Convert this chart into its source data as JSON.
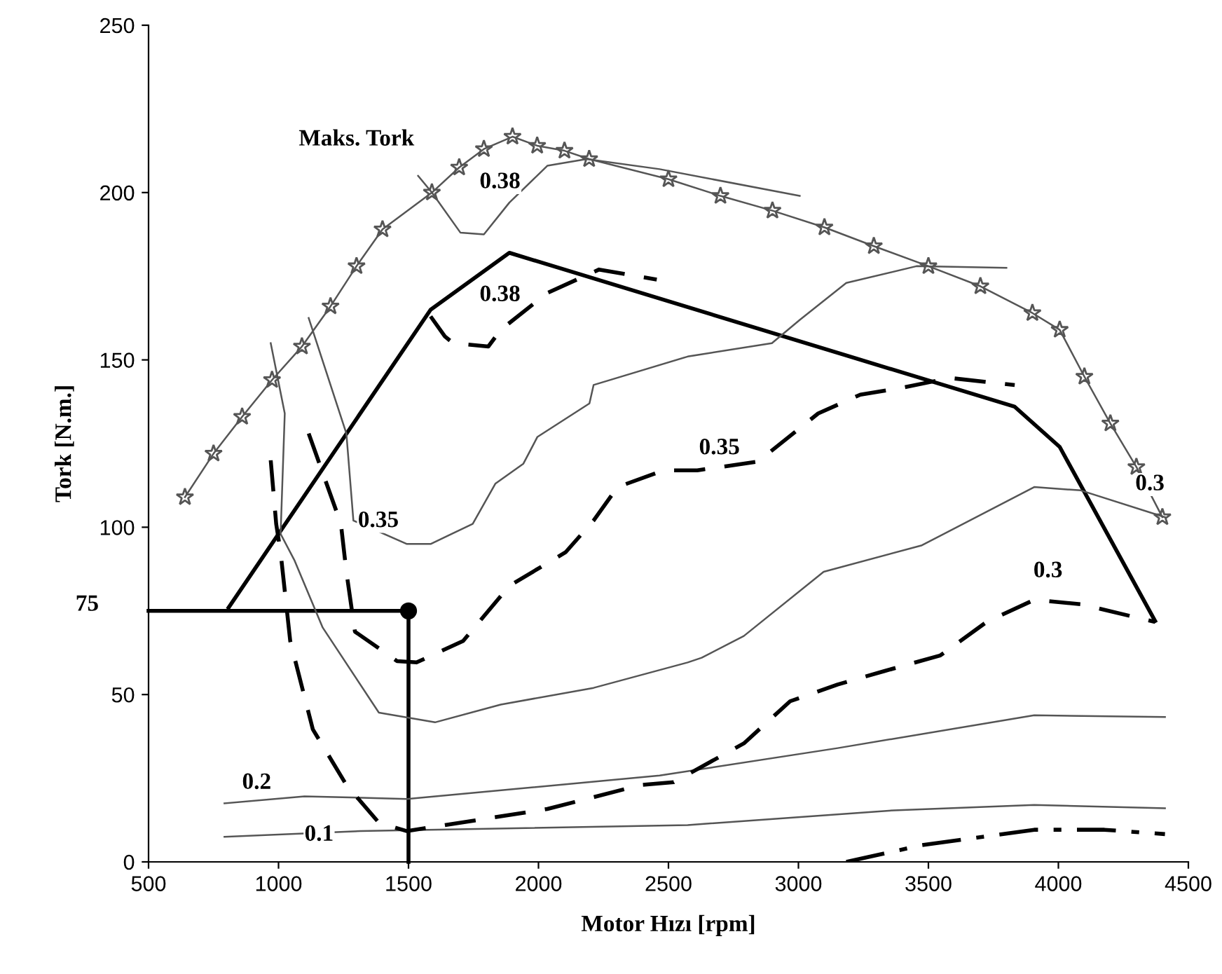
{
  "chart_data": {
    "type": "line",
    "xlabel": "Motor Hızı [rpm]",
    "ylabel": "Tork [N.m.]",
    "xlim": [
      500,
      4500
    ],
    "ylim": [
      0,
      250
    ],
    "xticks": [
      500,
      1000,
      1500,
      2000,
      2500,
      3000,
      3500,
      4000,
      4500
    ],
    "yticks": [
      0,
      50,
      100,
      150,
      200,
      250
    ],
    "grid": false,
    "legend": false,
    "series": [
      {
        "color": "#555555",
        "marker": "star",
        "line_style": "solid",
        "x": [
          640,
          750,
          860,
          975,
          1090,
          1200,
          1300,
          1400,
          1590,
          1695,
          1790,
          1900,
          1995,
          2100,
          2195,
          2500,
          2700,
          2900,
          3100,
          3290,
          3500,
          3700,
          3900,
          4005,
          4100,
          4200,
          4300,
          4400
        ],
        "values": [
          109,
          122,
          133,
          144,
          154,
          166,
          178,
          189,
          200,
          207.5,
          213,
          216.7,
          214,
          212.5,
          210,
          204,
          199,
          194.6,
          189.6,
          184,
          178,
          172,
          164,
          159,
          145,
          131,
          118,
          103
        ]
      },
      {
        "color": "#000000",
        "line_style": "solid",
        "x": [
          808,
          1585,
          1888,
          3832,
          4005,
          4372
        ],
        "values": [
          76,
          165,
          182,
          136,
          124,
          72
        ]
      },
      {
        "color": "#000000",
        "line_style": "solid",
        "x": [
          500,
          1500,
          1500
        ],
        "values": [
          75,
          75,
          0
        ]
      },
      {
        "type": "scatter",
        "color": "#000000",
        "marker": "circle",
        "x": [
          1500
        ],
        "values": [
          75
        ]
      },
      {
        "color": "#555555",
        "line_style": "solid",
        "x": [
          1537,
          1590,
          1700,
          1790,
          1888,
          2034,
          2185,
          2466,
          3005
        ],
        "values": [
          205,
          200,
          188,
          187.5,
          197,
          208,
          210,
          207,
          199
        ]
      },
      {
        "color": "#555555",
        "line_style": "solid",
        "x": [
          1116,
          1261,
          1288,
          1494,
          1585,
          1747,
          1834,
          1942,
          1996,
          2196,
          2212,
          2574,
          2898,
          3006,
          3184,
          3454,
          3800
        ],
        "values": [
          162.5,
          128,
          102,
          95,
          95,
          101,
          113,
          119,
          127,
          137,
          142.5,
          151,
          155,
          162,
          173,
          178,
          177.5
        ]
      },
      {
        "color": "#555555",
        "line_style": "solid",
        "x": [
          970,
          1024,
          1008,
          1062,
          1170,
          1386,
          1602,
          1855,
          2212,
          2574,
          2628,
          2790,
          3097,
          3475,
          3907,
          4086,
          4410
        ],
        "values": [
          155,
          134,
          98,
          90,
          70,
          44.6,
          41.7,
          47,
          52,
          59.6,
          61,
          67.5,
          86.7,
          94.6,
          112,
          111,
          103
        ]
      },
      {
        "color": "#555555",
        "line_style": "solid",
        "x": [
          792,
          1100,
          1494,
          2466,
          3151,
          3907,
          4410
        ],
        "values": [
          17.5,
          19.6,
          18.8,
          25.8,
          34,
          43.8,
          43.3
        ]
      },
      {
        "color": "#555555",
        "line_style": "solid",
        "x": [
          792,
          1315,
          2574,
          3367,
          3907,
          4410
        ],
        "values": [
          7.5,
          9.2,
          11,
          15.4,
          17,
          16
        ]
      },
      {
        "color": "#000000",
        "line_style": "dashed",
        "x": [
          1585,
          1640,
          1672,
          1807,
          1855,
          2034,
          2233,
          2455
        ],
        "values": [
          163,
          157,
          155,
          154,
          159,
          170,
          177,
          174
        ]
      },
      {
        "color": "#000000",
        "line_style": "dashed",
        "x": [
          1116,
          1240,
          1261,
          1294,
          1456,
          1531,
          1710,
          1888,
          2104,
          2212,
          2304,
          2482,
          2611,
          2844,
          3076,
          3238,
          3400,
          3583,
          3832
        ],
        "values": [
          128,
          101,
          86.7,
          68.8,
          60,
          59.6,
          66,
          82.5,
          92.5,
          102,
          112,
          117,
          117,
          119.6,
          134,
          139.6,
          141.7,
          144.6,
          142.5
        ]
      },
      {
        "color": "#000000",
        "line_style": "dashed",
        "x": [
          970,
          991,
          1008,
          1045,
          1132,
          1261,
          1386,
          1494,
          2034,
          2395,
          2520,
          2790,
          2968,
          3151,
          3330,
          3546,
          3724,
          3907,
          4086,
          4372
        ],
        "values": [
          120,
          101,
          92.5,
          66,
          39.6,
          23,
          11.7,
          9.2,
          15.8,
          23,
          23.8,
          35.4,
          48,
          53,
          57,
          61.7,
          71.7,
          78.3,
          77,
          71.7
        ]
      },
      {
        "color": "#000000",
        "line_style": "dashdot",
        "x": [
          3184,
          3475,
          3907,
          4177,
          4410
        ],
        "values": [
          0,
          5,
          9.6,
          9.6,
          8.3
        ]
      }
    ],
    "annotations": [
      "Maks. Tork",
      "0.38",
      "0.38",
      "0.35",
      "0.35",
      "0.3",
      "0.3",
      "0.2",
      "0.1",
      "75"
    ]
  }
}
